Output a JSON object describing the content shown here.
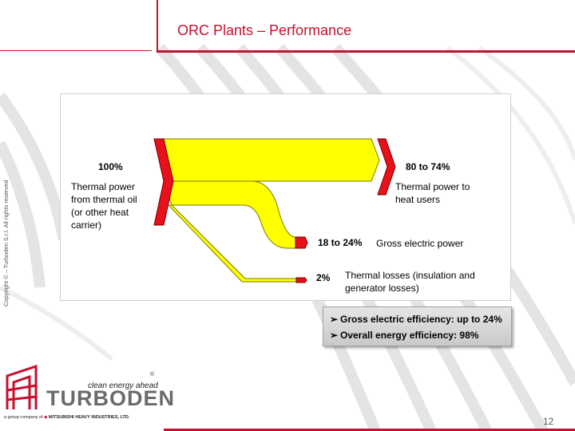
{
  "slide": {
    "title": "ORC Plants – Performance",
    "copyright": "Copyright © – Turboden S.r.l. All rights reserved",
    "page_number": "12"
  },
  "diagram": {
    "input": {
      "percent": "100%",
      "label_lines": [
        "Thermal power",
        "from thermal oil",
        "(or other heat",
        "carrier)"
      ]
    },
    "output_heat": {
      "percent": "80 to 74%",
      "label_lines": [
        "Thermal power to",
        "heat users"
      ]
    },
    "output_electric": {
      "percent": "18 to 24%",
      "label_lines": [
        "Gross electric power"
      ]
    },
    "output_losses": {
      "percent": "2%",
      "label_lines": [
        "Thermal losses (insulation and",
        "generator losses)"
      ]
    },
    "colors": {
      "flow": "#ffff00",
      "flow_outline": "#7a7a00",
      "arrow": "#e8101a"
    }
  },
  "highlights": {
    "items": [
      "Gross electric efficiency: up to 24%",
      "Overall energy efficiency: 98%"
    ],
    "bullet_icon": "arrow-bullet-icon"
  },
  "branding": {
    "tagline": "clean energy ahead",
    "registered": "®",
    "name": "TURBODEN",
    "group_prefix": "a group company of",
    "group_name": "MITSUBISHI HEAVY INDUSTRIES, LTD.",
    "logo_icon": "turboden-logo-icon",
    "accent": "#c8102e"
  }
}
